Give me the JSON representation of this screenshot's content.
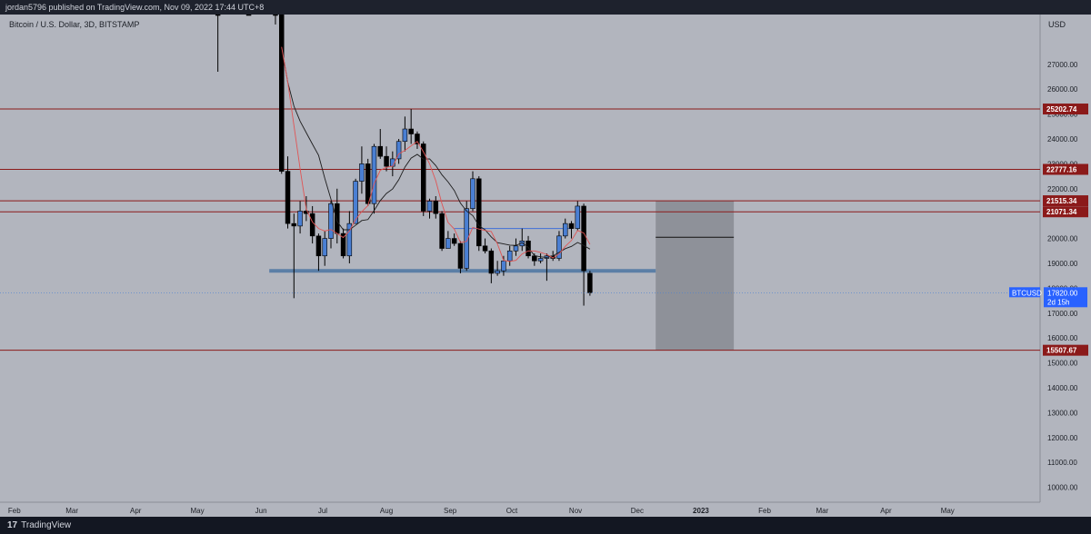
{
  "header": {
    "publish_line": "jordan5796 published on TradingView.com, Nov 09, 2022 17:44 UTC+8"
  },
  "footer": {
    "brand": "TradingView",
    "logo_icon": "tradingview-logo-icon"
  },
  "colors": {
    "background": "#b2b5be",
    "bull": "#4a7fd3",
    "bear": "#000000",
    "resistance": "#8b1a1a",
    "support_band": "#5b7fa6",
    "projection_box": "#8e9199"
  },
  "chart_data": {
    "type": "candlestick",
    "title": "Bitcoin / U.S. Dollar, 3D, BITSTAMP",
    "symbol": "BTCUSD",
    "currency_label": "USD",
    "last_price": "17820.00",
    "countdown": "2d 15h",
    "ylim": [
      9400,
      29000
    ],
    "y_ticks": [
      10000,
      11000,
      12000,
      13000,
      14000,
      15000,
      16000,
      17000,
      18000,
      19000,
      20000,
      21000,
      22000,
      23000,
      24000,
      25000,
      26000,
      27000
    ],
    "y_tick_labels": [
      "10000.00",
      "11000.00",
      "12000.00",
      "13000.00",
      "14000.00",
      "15000.00",
      "16000.00",
      "17000.00",
      "18000.00",
      "19000.00",
      "20000.00",
      "21000.00",
      "22000.00",
      "23000.00",
      "24000.00",
      "25000.00",
      "26000.00",
      "27000.00"
    ],
    "x_ticks": [
      "2022-02-01",
      "2022-03-01",
      "2022-04-01",
      "2022-05-01",
      "2022-06-01",
      "2022-07-01",
      "2022-08-01",
      "2022-09-01",
      "2022-10-01",
      "2022-11-01",
      "2022-12-01",
      "2023-01-01",
      "2023-02-01",
      "2023-03-01",
      "2023-04-01",
      "2023-05-01"
    ],
    "x_tick_labels": [
      "Feb",
      "Mar",
      "Apr",
      "May",
      "Jun",
      "Jul",
      "Aug",
      "Sep",
      "Oct",
      "Nov",
      "Dec",
      "2023",
      "Feb",
      "Mar",
      "Apr",
      "May"
    ],
    "xlim": [
      "2022-01-25",
      "2023-06-15"
    ],
    "levels": [
      {
        "price": 25202.74,
        "label": "25202.74"
      },
      {
        "price": 22777.16,
        "label": "22777.16"
      },
      {
        "price": 21515.34,
        "label": "21515.34"
      },
      {
        "price": 21071.34,
        "label": "21071.34"
      },
      {
        "price": 15507.67,
        "label": "15507.67"
      }
    ],
    "support_band": {
      "price": 18700,
      "from": "2022-06-05",
      "to": "2022-12-10"
    },
    "projection_box": {
      "from": "2022-12-10",
      "to": "2023-01-17",
      "top": 21515.34,
      "bottom": 15507.67,
      "mid_line": 20050
    },
    "range_line": {
      "price": 20400,
      "from": "2022-09-03",
      "to": "2022-10-30"
    },
    "candles": [
      {
        "date": "2022-05-11",
        "o": 29500,
        "h": 32000,
        "l": 26700,
        "c": 29200
      },
      {
        "date": "2022-05-26",
        "o": 30500,
        "h": 31500,
        "l": 29000,
        "c": 29800
      },
      {
        "date": "2022-06-08",
        "o": 30100,
        "h": 31500,
        "l": 28600,
        "c": 29100
      },
      {
        "date": "2022-06-11",
        "o": 29100,
        "h": 29600,
        "l": 22600,
        "c": 22700
      },
      {
        "date": "2022-06-14",
        "o": 22700,
        "h": 23300,
        "l": 20400,
        "c": 20600
      },
      {
        "date": "2022-06-17",
        "o": 20600,
        "h": 21000,
        "l": 17600,
        "c": 20500
      },
      {
        "date": "2022-06-20",
        "o": 20500,
        "h": 21500,
        "l": 20200,
        "c": 21100
      },
      {
        "date": "2022-06-23",
        "o": 21100,
        "h": 21700,
        "l": 20700,
        "c": 21000
      },
      {
        "date": "2022-06-26",
        "o": 21000,
        "h": 21300,
        "l": 19800,
        "c": 20100
      },
      {
        "date": "2022-06-29",
        "o": 20100,
        "h": 20200,
        "l": 18700,
        "c": 19300
      },
      {
        "date": "2022-07-02",
        "o": 19300,
        "h": 20300,
        "l": 18900,
        "c": 20000
      },
      {
        "date": "2022-07-05",
        "o": 20000,
        "h": 21500,
        "l": 19600,
        "c": 21400
      },
      {
        "date": "2022-07-08",
        "o": 21400,
        "h": 22000,
        "l": 19800,
        "c": 20200
      },
      {
        "date": "2022-07-11",
        "o": 20200,
        "h": 20400,
        "l": 19200,
        "c": 19300
      },
      {
        "date": "2022-07-14",
        "o": 19300,
        "h": 21100,
        "l": 19000,
        "c": 20600
      },
      {
        "date": "2022-07-17",
        "o": 20600,
        "h": 22400,
        "l": 20600,
        "c": 22300
      },
      {
        "date": "2022-07-20",
        "o": 22300,
        "h": 23700,
        "l": 21800,
        "c": 23000
      },
      {
        "date": "2022-07-23",
        "o": 23000,
        "h": 23200,
        "l": 21300,
        "c": 21400
      },
      {
        "date": "2022-07-26",
        "o": 21400,
        "h": 23800,
        "l": 21000,
        "c": 23700
      },
      {
        "date": "2022-07-29",
        "o": 23700,
        "h": 24400,
        "l": 23200,
        "c": 23300
      },
      {
        "date": "2022-08-01",
        "o": 23300,
        "h": 23700,
        "l": 22700,
        "c": 22900
      },
      {
        "date": "2022-08-04",
        "o": 22900,
        "h": 23500,
        "l": 22500,
        "c": 23200
      },
      {
        "date": "2022-08-07",
        "o": 23200,
        "h": 24000,
        "l": 23000,
        "c": 23900
      },
      {
        "date": "2022-08-10",
        "o": 23900,
        "h": 24900,
        "l": 23500,
        "c": 24400
      },
      {
        "date": "2022-08-13",
        "o": 24400,
        "h": 25200,
        "l": 23800,
        "c": 24200
      },
      {
        "date": "2022-08-16",
        "o": 24200,
        "h": 24300,
        "l": 23600,
        "c": 23800
      },
      {
        "date": "2022-08-19",
        "o": 23800,
        "h": 23900,
        "l": 20900,
        "c": 21100
      },
      {
        "date": "2022-08-22",
        "o": 21100,
        "h": 21600,
        "l": 20800,
        "c": 21500
      },
      {
        "date": "2022-08-25",
        "o": 21500,
        "h": 21700,
        "l": 20800,
        "c": 21000
      },
      {
        "date": "2022-08-28",
        "o": 21000,
        "h": 21100,
        "l": 19500,
        "c": 19600
      },
      {
        "date": "2022-08-31",
        "o": 19600,
        "h": 20300,
        "l": 19600,
        "c": 20000
      },
      {
        "date": "2022-09-03",
        "o": 20000,
        "h": 20200,
        "l": 19700,
        "c": 19800
      },
      {
        "date": "2022-09-06",
        "o": 19800,
        "h": 19900,
        "l": 18600,
        "c": 18800
      },
      {
        "date": "2022-09-09",
        "o": 18800,
        "h": 21500,
        "l": 18700,
        "c": 21200
      },
      {
        "date": "2022-09-12",
        "o": 21200,
        "h": 22700,
        "l": 21100,
        "c": 22400
      },
      {
        "date": "2022-09-15",
        "o": 22400,
        "h": 22500,
        "l": 19500,
        "c": 19700
      },
      {
        "date": "2022-09-18",
        "o": 19700,
        "h": 20000,
        "l": 19400,
        "c": 19500
      },
      {
        "date": "2022-09-21",
        "o": 19500,
        "h": 19600,
        "l": 18200,
        "c": 18600
      },
      {
        "date": "2022-09-24",
        "o": 18600,
        "h": 19100,
        "l": 18500,
        "c": 18700
      },
      {
        "date": "2022-09-27",
        "o": 18700,
        "h": 19300,
        "l": 18500,
        "c": 19100
      },
      {
        "date": "2022-09-30",
        "o": 19100,
        "h": 19700,
        "l": 18900,
        "c": 19500
      },
      {
        "date": "2022-10-03",
        "o": 19500,
        "h": 20000,
        "l": 19300,
        "c": 19700
      },
      {
        "date": "2022-10-06",
        "o": 19700,
        "h": 20400,
        "l": 19500,
        "c": 19900
      },
      {
        "date": "2022-10-09",
        "o": 19900,
        "h": 20100,
        "l": 19200,
        "c": 19300
      },
      {
        "date": "2022-10-12",
        "o": 19300,
        "h": 19400,
        "l": 18900,
        "c": 19100
      },
      {
        "date": "2022-10-15",
        "o": 19100,
        "h": 19400,
        "l": 19000,
        "c": 19200
      },
      {
        "date": "2022-10-18",
        "o": 19200,
        "h": 19400,
        "l": 18300,
        "c": 19300
      },
      {
        "date": "2022-10-21",
        "o": 19300,
        "h": 19500,
        "l": 19100,
        "c": 19200
      },
      {
        "date": "2022-10-24",
        "o": 19200,
        "h": 20300,
        "l": 19100,
        "c": 20100
      },
      {
        "date": "2022-10-27",
        "o": 20100,
        "h": 20800,
        "l": 20000,
        "c": 20600
      },
      {
        "date": "2022-10-30",
        "o": 20600,
        "h": 20700,
        "l": 20000,
        "c": 20400
      },
      {
        "date": "2022-11-02",
        "o": 20400,
        "h": 21500,
        "l": 20300,
        "c": 21300
      },
      {
        "date": "2022-11-05",
        "o": 21300,
        "h": 21400,
        "l": 17300,
        "c": 18700
      },
      {
        "date": "2022-11-08",
        "o": 18600,
        "h": 18700,
        "l": 17700,
        "c": 17820
      }
    ]
  }
}
